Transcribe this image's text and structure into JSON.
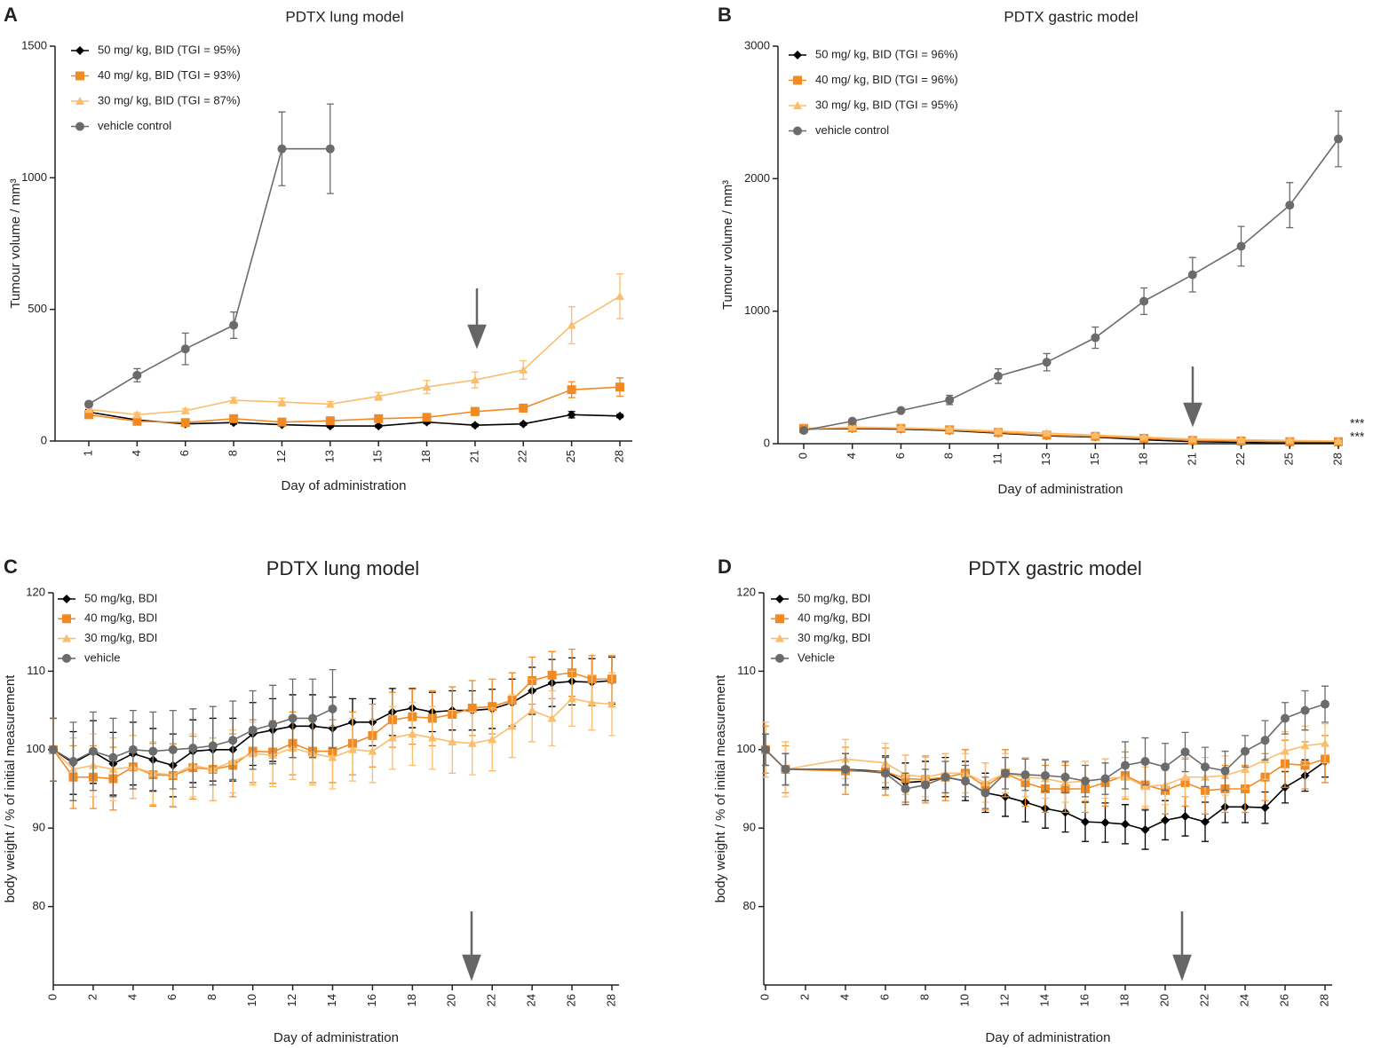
{
  "chart_data": [
    {
      "type": "line",
      "panel": "A",
      "title": "PDTX lung model",
      "x_label": "Day of administration",
      "y_label": "Tumour volume / mm³",
      "categories": [
        "1",
        "4",
        "6",
        "8",
        "12",
        "13",
        "15",
        "18",
        "21",
        "22",
        "25",
        "28"
      ],
      "ylim": [
        0,
        1500
      ],
      "yticks": [
        0,
        500,
        1000,
        1500
      ],
      "grid": false,
      "series": [
        {
          "name": "50 mg/ kg, BID (TGI = 95%)",
          "color": "#000000",
          "marker": "diamond",
          "values": [
            110,
            80,
            65,
            70,
            62,
            57,
            57,
            72,
            60,
            65,
            100,
            95
          ],
          "errors": [
            10,
            8,
            6,
            6,
            5,
            5,
            5,
            6,
            5,
            5,
            12,
            6
          ]
        },
        {
          "name": "40 mg/ kg, BID (TGI = 93%)",
          "color": "#f28a24",
          "marker": "square",
          "values": [
            100,
            75,
            70,
            85,
            72,
            77,
            85,
            90,
            112,
            125,
            195,
            205
          ],
          "errors": [
            8,
            8,
            8,
            8,
            8,
            8,
            10,
            10,
            15,
            15,
            30,
            35
          ]
        },
        {
          "name": "30 mg/ kg, BID (TGI = 87%)",
          "color": "#fbbd6c",
          "marker": "triangle",
          "values": [
            120,
            100,
            115,
            155,
            148,
            140,
            170,
            205,
            232,
            270,
            440,
            550
          ],
          "errors": [
            8,
            8,
            8,
            10,
            15,
            10,
            15,
            25,
            30,
            35,
            70,
            85
          ]
        },
        {
          "name": "vehicle control",
          "color": "#6b6b6b",
          "marker": "circle",
          "values": [
            140,
            250,
            350,
            440,
            1110,
            1110,
            null,
            null,
            null,
            null,
            null,
            null
          ],
          "errors": [
            10,
            25,
            60,
            50,
            140,
            170,
            null,
            null,
            null,
            null,
            null,
            null
          ]
        }
      ]
    },
    {
      "type": "line",
      "panel": "B",
      "title": "PDTX gastric model",
      "x_label": "Day of administration",
      "y_label": "Tumour volume / mm³",
      "categories": [
        "0",
        "4",
        "6",
        "8",
        "11",
        "13",
        "15",
        "18",
        "21",
        "22",
        "25",
        "28"
      ],
      "ylim": [
        0,
        3000
      ],
      "yticks": [
        0,
        1000,
        2000,
        3000
      ],
      "grid": false,
      "annotations": [
        "***",
        "***"
      ],
      "series": [
        {
          "name": "50 mg/ kg, BID (TGI = 96%)",
          "color": "#000000",
          "marker": "diamond",
          "values": [
            110,
            115,
            110,
            100,
            80,
            60,
            50,
            30,
            15,
            10,
            5,
            5
          ],
          "errors": [
            10,
            10,
            10,
            10,
            10,
            10,
            8,
            8,
            5,
            5,
            5,
            5
          ]
        },
        {
          "name": "40 mg/ kg, BID (TGI = 96%)",
          "color": "#f28a24",
          "marker": "square",
          "values": [
            115,
            120,
            115,
            105,
            85,
            65,
            55,
            40,
            25,
            20,
            15,
            15
          ],
          "errors": [
            10,
            10,
            10,
            10,
            10,
            10,
            8,
            8,
            5,
            5,
            5,
            5
          ]
        },
        {
          "name": "30 mg/ kg, BID (TGI = 95%)",
          "color": "#fbbd6c",
          "marker": "triangle",
          "values": [
            110,
            125,
            120,
            110,
            95,
            80,
            65,
            50,
            35,
            30,
            25,
            20
          ],
          "errors": [
            10,
            10,
            10,
            10,
            10,
            10,
            8,
            8,
            5,
            5,
            5,
            5
          ]
        },
        {
          "name": "vehicle control",
          "color": "#6b6b6b",
          "marker": "circle",
          "values": [
            100,
            170,
            250,
            330,
            510,
            615,
            800,
            1075,
            1275,
            1490,
            1800,
            2300
          ],
          "errors": [
            10,
            15,
            15,
            35,
            55,
            65,
            80,
            100,
            130,
            150,
            170,
            210
          ]
        }
      ]
    },
    {
      "type": "line",
      "panel": "C",
      "title": "PDTX lung model",
      "x_label": "Day of administration",
      "y_label": "body weight / % of initial measurement",
      "x": [
        0,
        1,
        2,
        3,
        4,
        5,
        6,
        7,
        8,
        9,
        10,
        11,
        12,
        13,
        14,
        15,
        16,
        17,
        18,
        19,
        20,
        21,
        22,
        23,
        24,
        25,
        26,
        27,
        28
      ],
      "xlim": [
        0,
        28
      ],
      "xticks": [
        0,
        2,
        4,
        6,
        8,
        10,
        12,
        14,
        16,
        18,
        20,
        22,
        24,
        26,
        28
      ],
      "ylim": [
        70,
        120
      ],
      "yticks": [
        80,
        90,
        100,
        110,
        120
      ],
      "grid": false,
      "series": [
        {
          "name": "50 mg/kg, BDI",
          "color": "#000000",
          "marker": "diamond",
          "values": [
            100,
            98.3,
            99.7,
            98.2,
            99.5,
            98.7,
            98,
            99.8,
            100,
            100,
            102,
            102.5,
            103,
            103,
            102.7,
            103.5,
            103.5,
            104.8,
            105.3,
            104.8,
            105,
            105,
            105.2,
            106,
            107.5,
            108.5,
            108.7,
            108.6,
            108.8
          ],
          "errors": [
            4,
            4,
            4,
            4,
            4,
            4,
            4,
            4,
            4,
            4,
            4,
            4,
            4,
            4,
            4,
            3,
            3,
            3,
            2.5,
            2.5,
            2.5,
            2.5,
            2.5,
            3,
            3,
            3,
            3,
            3,
            3
          ]
        },
        {
          "name": "40 mg/kg, BDI",
          "color": "#f28a24",
          "marker": "square",
          "values": [
            100,
            96.5,
            96.5,
            96.3,
            97.8,
            96.8,
            96.7,
            97.7,
            97.5,
            98,
            99.8,
            99.7,
            100.8,
            99.8,
            99.8,
            100.8,
            101.8,
            103.8,
            104.2,
            104,
            104.5,
            105.3,
            105.5,
            106.3,
            108.8,
            109.5,
            109.8,
            109,
            109
          ],
          "errors": [
            4,
            4,
            4,
            4,
            4,
            4,
            4,
            4,
            4,
            4,
            4,
            4,
            4,
            4,
            4,
            4,
            4,
            3.5,
            3.5,
            3.5,
            3.5,
            3.5,
            3.5,
            3.5,
            3,
            3,
            3,
            3,
            3
          ]
        },
        {
          "name": "30 mg/kg, BDI",
          "color": "#fbbd6c",
          "marker": "triangle",
          "values": [
            100,
            97.5,
            98,
            97.5,
            97.8,
            97,
            96.8,
            98,
            97.5,
            98.5,
            99.5,
            99.3,
            100.2,
            99.5,
            99,
            100,
            99.8,
            101.5,
            102,
            101.5,
            101,
            100.8,
            101.3,
            103,
            105,
            104,
            106.5,
            106,
            105.8
          ],
          "errors": [
            4,
            4,
            4,
            4,
            4,
            4,
            4,
            4,
            4,
            4,
            4,
            4,
            4,
            4,
            4,
            4,
            4,
            4,
            4,
            4,
            4,
            4,
            4,
            4,
            4,
            3.5,
            3.5,
            3.5,
            4
          ]
        },
        {
          "name": "vehicle",
          "color": "#6b6b6b",
          "marker": "circle",
          "values": [
            100,
            98.5,
            99.8,
            99,
            100,
            99.8,
            100,
            100.2,
            100.5,
            101.2,
            102.5,
            103.2,
            104,
            104,
            105.2,
            null,
            null,
            null,
            null,
            null,
            null,
            null,
            null,
            null,
            null,
            null,
            null,
            null,
            null
          ],
          "errors": [
            4,
            5,
            5,
            5,
            5,
            5,
            5,
            5,
            5,
            5,
            5,
            5,
            5,
            5,
            5,
            null,
            null,
            null,
            null,
            null,
            null,
            null,
            null,
            null,
            null,
            null,
            null,
            null,
            null
          ]
        }
      ]
    },
    {
      "type": "line",
      "panel": "D",
      "title": "PDTX gastric model",
      "x_label": "Day of administration",
      "y_label": "body weight / % of initial measurement",
      "x": [
        0,
        1,
        4,
        6,
        7,
        8,
        9,
        10,
        11,
        12,
        13,
        14,
        15,
        16,
        17,
        18,
        19,
        20,
        21,
        22,
        23,
        24,
        25,
        26,
        27,
        28
      ],
      "xlim": [
        0,
        28
      ],
      "xticks": [
        0,
        2,
        4,
        6,
        8,
        10,
        12,
        14,
        16,
        18,
        20,
        22,
        24,
        26,
        28
      ],
      "ylim": [
        70,
        120
      ],
      "yticks": [
        80,
        90,
        100,
        110,
        120
      ],
      "grid": false,
      "series": [
        {
          "name": "50 mg/kg, BDI",
          "color": "#000000",
          "marker": "diamond",
          "values": [
            100,
            97.5,
            97.5,
            97.2,
            95.8,
            96,
            96.5,
            96,
            94.5,
            94,
            93.3,
            92.5,
            92,
            90.8,
            90.7,
            90.5,
            89.8,
            91,
            91.5,
            90.8,
            92.7,
            92.7,
            92.6,
            95.2,
            96.7,
            98.5
          ],
          "errors": [
            2,
            2,
            2,
            2,
            2.5,
            2.5,
            2.5,
            2.5,
            2.5,
            2.5,
            2.5,
            2.5,
            2.5,
            2.5,
            2.5,
            2.5,
            2.5,
            2.5,
            2.5,
            2.5,
            2,
            2,
            2,
            2,
            2,
            2
          ]
        },
        {
          "name": "40 mg/kg, BDI",
          "color": "#f28a24",
          "marker": "square",
          "values": [
            100,
            97.5,
            97.3,
            97.2,
            96.3,
            96.2,
            96.5,
            97,
            95.3,
            97,
            95.8,
            95,
            95,
            95,
            95.8,
            96.7,
            95.5,
            94.8,
            95.8,
            94.8,
            95,
            95,
            96.5,
            98.2,
            98,
            98.8
          ],
          "errors": [
            3,
            3,
            3,
            3,
            3,
            3,
            3,
            3,
            3,
            3,
            3,
            3,
            3,
            3,
            3,
            3,
            3,
            3,
            3,
            3,
            3,
            3,
            3,
            3,
            3,
            3
          ]
        },
        {
          "name": "30 mg/kg, BDI",
          "color": "#fbbd6c",
          "marker": "triangle",
          "values": [
            100,
            97.5,
            98.8,
            98.3,
            96.8,
            96.5,
            97,
            97,
            95.8,
            97,
            96.5,
            96.3,
            95.8,
            96,
            96.3,
            96.5,
            95.3,
            95.5,
            96.5,
            96.5,
            96.7,
            97.5,
            98.7,
            99.8,
            100.5,
            100.8
          ],
          "errors": [
            3.5,
            3.5,
            2.5,
            2.5,
            2.5,
            2.5,
            2.5,
            2.5,
            2.5,
            2.5,
            2.5,
            2.5,
            2.5,
            2.5,
            2.5,
            2.5,
            2.5,
            2.5,
            2.5,
            2.5,
            2.5,
            2.5,
            2.5,
            2.5,
            2.5,
            2.5
          ]
        },
        {
          "name": "Vehicle",
          "color": "#6b6b6b",
          "marker": "circle",
          "values": [
            100,
            97.5,
            97.5,
            97,
            95,
            95.5,
            96.5,
            96,
            94.5,
            97,
            96.8,
            96.7,
            96.5,
            96,
            96.3,
            98,
            98.5,
            97.8,
            99.7,
            97.8,
            97.3,
            99.8,
            101.2,
            104,
            105,
            105.8
          ],
          "errors": [
            2,
            2,
            2,
            2,
            2,
            2,
            2,
            2,
            2,
            2,
            2,
            2,
            2,
            2,
            2,
            3,
            3,
            3,
            2.5,
            2.5,
            2.5,
            2,
            2.5,
            2,
            2.5,
            2.3
          ]
        }
      ]
    }
  ]
}
